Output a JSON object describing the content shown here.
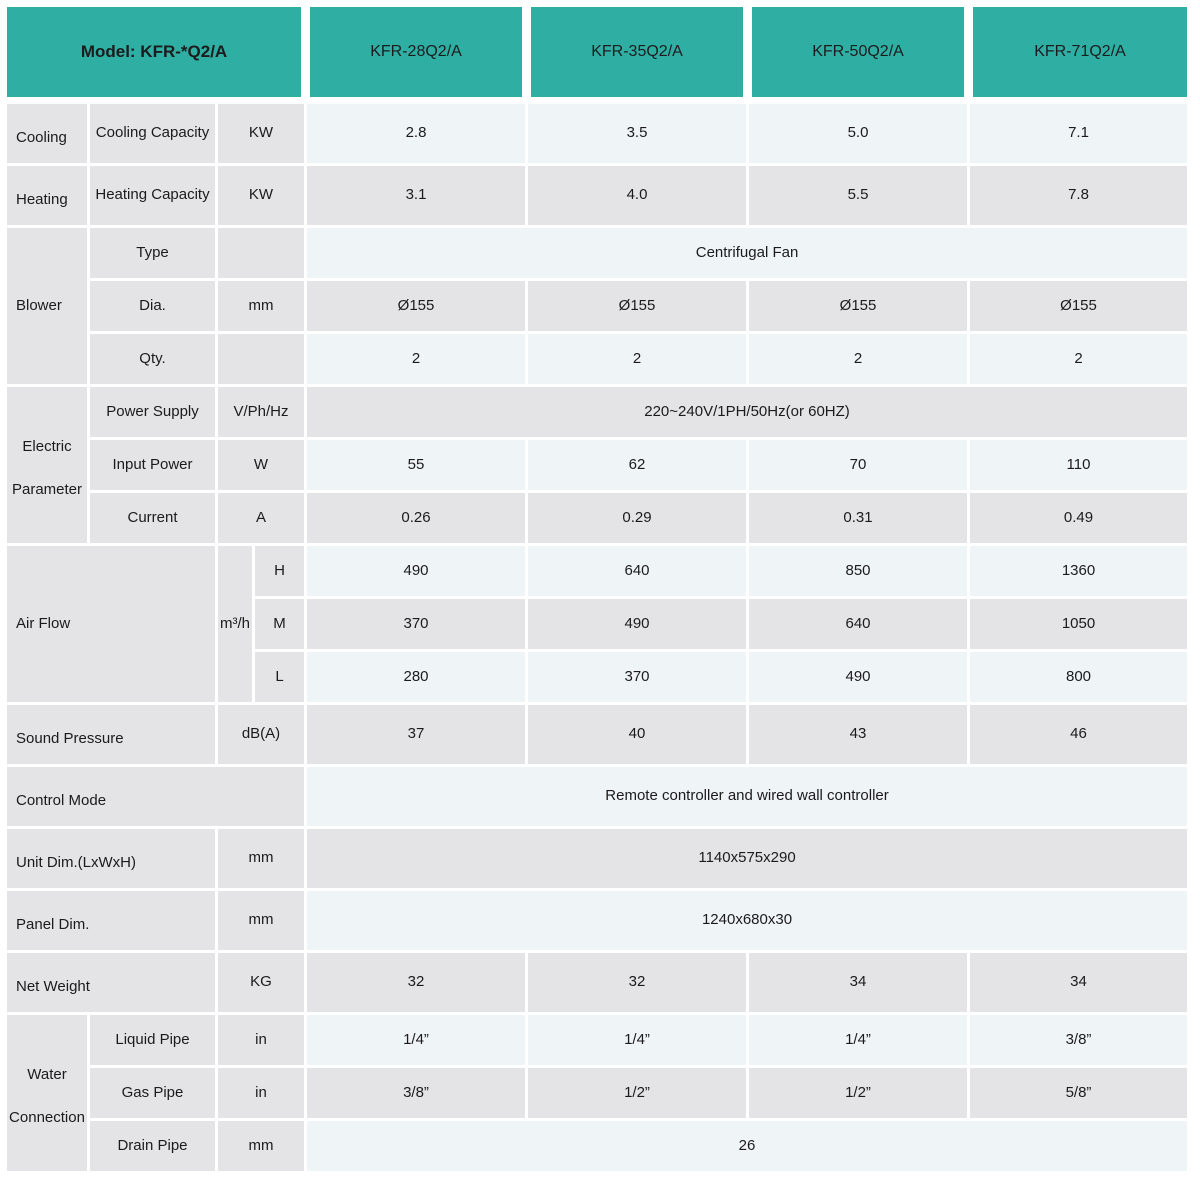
{
  "table": {
    "model_header": "Model: KFR-*Q2/A",
    "models": [
      "KFR-28Q2/A",
      "KFR-35Q2/A",
      "KFR-50Q2/A",
      "KFR-71Q2/A"
    ],
    "colors": {
      "header_teal": "#2FAEA4",
      "row_light": "#EFF4F7",
      "row_gray": "#E4E4E6",
      "text": "#1B1B1B"
    },
    "sections": {
      "cooling": {
        "group": "Cooling",
        "param": "Cooling Capacity",
        "unit": "KW",
        "values": [
          "2.8",
          "3.5",
          "5.0",
          "7.1"
        ]
      },
      "heating": {
        "group": "Heating",
        "param": "Heating Capacity",
        "unit": "KW",
        "values": [
          "3.1",
          "4.0",
          "5.5",
          "7.8"
        ]
      },
      "blower": {
        "group": "Blower",
        "type": {
          "param": "Type",
          "unit": "",
          "value": "Centrifugal Fan"
        },
        "dia": {
          "param": "Dia.",
          "unit": "mm",
          "values": [
            "Ø155",
            "Ø155",
            "Ø155",
            "Ø155"
          ]
        },
        "qty": {
          "param": "Qty.",
          "unit": "",
          "values": [
            "2",
            "2",
            "2",
            "2"
          ]
        }
      },
      "electric": {
        "group": "Electric Parameter",
        "power_supply": {
          "param": "Power Supply",
          "unit": "V/Ph/Hz",
          "value": "220~240V/1PH/50Hz(or 60HZ)"
        },
        "input_power": {
          "param": "Input Power",
          "unit": "W",
          "values": [
            "55",
            "62",
            "70",
            "110"
          ]
        },
        "current": {
          "param": "Current",
          "unit": "A",
          "values": [
            "0.26",
            "0.29",
            "0.31",
            "0.49"
          ]
        }
      },
      "air_flow": {
        "group": "Air Flow",
        "unit": "m³/h",
        "h": {
          "level": "H",
          "values": [
            "490",
            "640",
            "850",
            "1360"
          ]
        },
        "m": {
          "level": "M",
          "values": [
            "370",
            "490",
            "640",
            "1050"
          ]
        },
        "l": {
          "level": "L",
          "values": [
            "280",
            "370",
            "490",
            "800"
          ]
        }
      },
      "sound_pressure": {
        "group": "Sound Pressure",
        "unit": "dB(A)",
        "values": [
          "37",
          "40",
          "43",
          "46"
        ]
      },
      "control_mode": {
        "group": "Control Mode",
        "value": "Remote controller and wired wall controller"
      },
      "unit_dim": {
        "group": "Unit Dim.(LxWxH)",
        "unit": "mm",
        "value": "1140x575x290"
      },
      "panel_dim": {
        "group": "Panel Dim.",
        "unit": "mm",
        "value": "1240x680x30"
      },
      "net_weight": {
        "group": "Net Weight",
        "unit": "KG",
        "values": [
          "32",
          "32",
          "34",
          "34"
        ]
      },
      "water": {
        "group": "Water Connection",
        "liquid": {
          "param": "Liquid Pipe",
          "unit": "in",
          "values": [
            "1/4”",
            "1/4”",
            "1/4”",
            "3/8”"
          ]
        },
        "gas": {
          "param": "Gas Pipe",
          "unit": "in",
          "values": [
            "3/8”",
            "1/2”",
            "1/2”",
            "5/8”"
          ]
        },
        "drain": {
          "param": "Drain Pipe",
          "unit": "mm",
          "value": "26"
        }
      }
    }
  }
}
